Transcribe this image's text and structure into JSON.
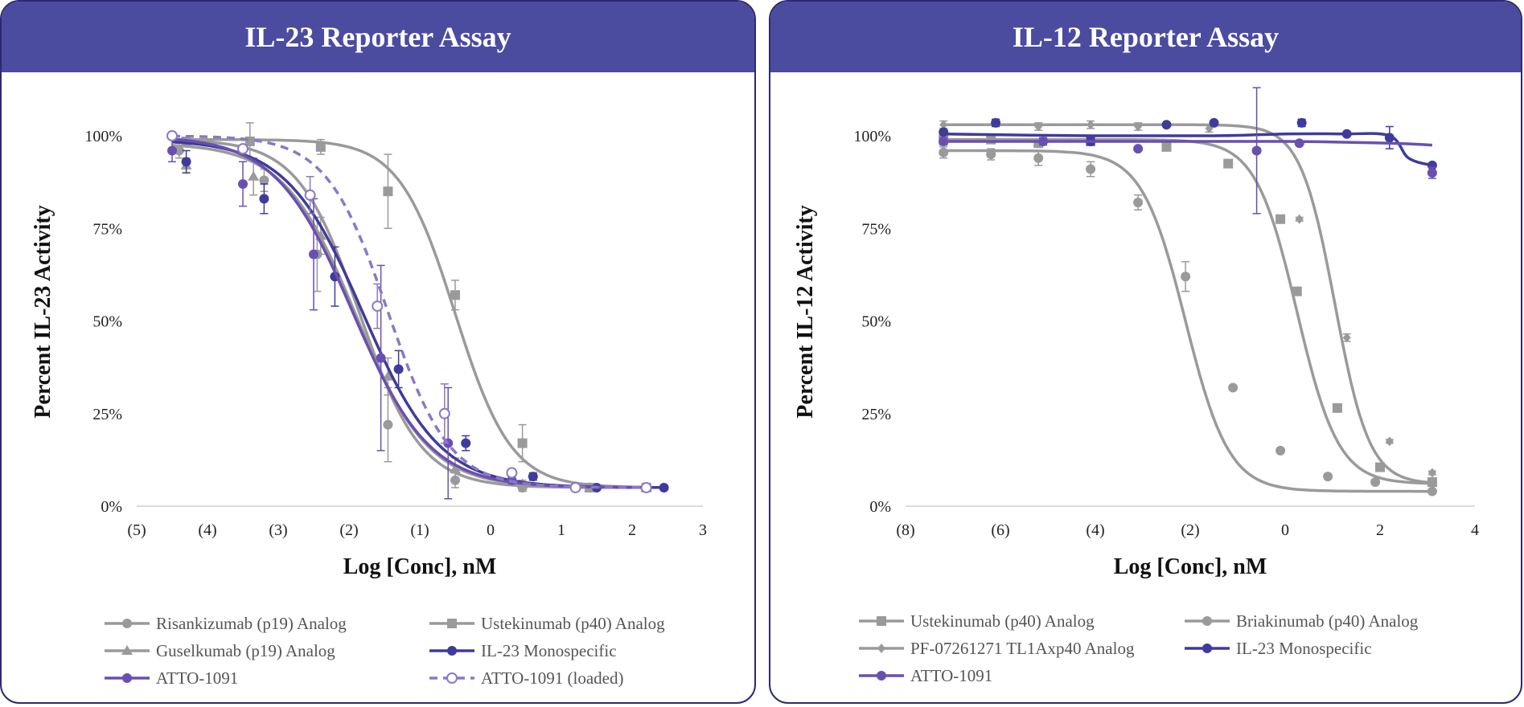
{
  "colors": {
    "header_bg": "#4b4ba0",
    "border": "#2e2a6e",
    "gray": "#9a9a9a",
    "purple": "#6a4fb2",
    "dark_purple": "#3f3b9c",
    "light_purple": "#8a78c8"
  },
  "chart_data": [
    {
      "type": "line",
      "title": "IL-23 Reporter Assay",
      "xlabel": "Log [Conc], nM",
      "ylabel": "Percent IL-23 Activity",
      "xlim": [
        -5,
        3
      ],
      "ylim": [
        0,
        1.05
      ],
      "x_ticks": [
        {
          "v": -5,
          "label": "(5)"
        },
        {
          "v": -4,
          "label": "(4)"
        },
        {
          "v": -3,
          "label": "(3)"
        },
        {
          "v": -2,
          "label": "(2)"
        },
        {
          "v": -1,
          "label": "(1)"
        },
        {
          "v": 0,
          "label": "0"
        },
        {
          "v": 1,
          "label": "1"
        },
        {
          "v": 2,
          "label": "2"
        },
        {
          "v": 3,
          "label": "3"
        }
      ],
      "y_ticks": [
        {
          "v": 0,
          "label": "0%"
        },
        {
          "v": 0.25,
          "label": "25%"
        },
        {
          "v": 0.5,
          "label": "50%"
        },
        {
          "v": 0.75,
          "label": "75%"
        },
        {
          "v": 1,
          "label": "100%"
        }
      ],
      "legend_position": "bottom",
      "series": [
        {
          "name": "Risankizumab (p19) Analog",
          "color": "#9a9a9a",
          "marker": "circle",
          "dash": false,
          "fit": {
            "top": 0.99,
            "bottom": 0.05,
            "ic50": -1.85,
            "hill": 1.0,
            "x_range": [
              -4.5,
              2.2
            ]
          },
          "points": [
            {
              "x": -4.4,
              "y": 0.96,
              "err": 0.02
            },
            {
              "x": -3.2,
              "y": 0.88,
              "err": 0.03
            },
            {
              "x": -2.45,
              "y": 0.68,
              "err": 0.1
            },
            {
              "x": -1.45,
              "y": 0.22,
              "err": 0.1
            },
            {
              "x": -0.5,
              "y": 0.07,
              "err": 0.02
            },
            {
              "x": 0.45,
              "y": 0.05,
              "err": 0.01
            },
            {
              "x": 1.4,
              "y": 0.05,
              "err": 0.005
            },
            {
              "x": 2.2,
              "y": 0.05,
              "err": 0.005
            }
          ]
        },
        {
          "name": "Ustekinumab (p40) Analog",
          "color": "#9a9a9a",
          "marker": "square",
          "dash": false,
          "fit": {
            "top": 0.99,
            "bottom": 0.05,
            "ic50": -0.5,
            "hill": 1.1,
            "x_range": [
              -4.5,
              2.2
            ]
          },
          "points": [
            {
              "x": -4.3,
              "y": 0.985,
              "err": 0.01
            },
            {
              "x": -3.4,
              "y": 0.985,
              "err": 0.05
            },
            {
              "x": -2.4,
              "y": 0.97,
              "err": 0.02
            },
            {
              "x": -1.45,
              "y": 0.85,
              "err": 0.1
            },
            {
              "x": -0.5,
              "y": 0.57,
              "err": 0.04
            },
            {
              "x": 0.45,
              "y": 0.17,
              "err": 0.05
            },
            {
              "x": 1.4,
              "y": 0.05,
              "err": 0.005
            },
            {
              "x": 2.2,
              "y": 0.05,
              "err": 0.005
            }
          ]
        },
        {
          "name": "Guselkumab (p19) Analog",
          "color": "#9a9a9a",
          "marker": "triangle",
          "dash": false,
          "fit": {
            "top": 0.98,
            "bottom": 0.05,
            "ic50": -1.9,
            "hill": 0.85,
            "x_range": [
              -4.5,
              2.2
            ]
          },
          "points": [
            {
              "x": -4.3,
              "y": 0.92,
              "err": 0.02
            },
            {
              "x": -3.35,
              "y": 0.89,
              "err": 0.05
            },
            {
              "x": -2.4,
              "y": 0.73,
              "err": 0.05
            },
            {
              "x": -1.45,
              "y": 0.35,
              "err": 0.05
            },
            {
              "x": -0.5,
              "y": 0.1,
              "err": 0.03
            },
            {
              "x": 0.45,
              "y": 0.06,
              "err": 0.01
            },
            {
              "x": 1.4,
              "y": 0.05,
              "err": 0.005
            },
            {
              "x": 2.2,
              "y": 0.05,
              "err": 0.005
            }
          ]
        },
        {
          "name": "IL-23 Monospecific",
          "color": "#3f3b9c",
          "marker": "circle",
          "dash": false,
          "fit": {
            "top": 0.99,
            "bottom": 0.05,
            "ic50": -1.8,
            "hill": 0.8,
            "x_range": [
              -4.5,
              2.45
            ]
          },
          "points": [
            {
              "x": -4.3,
              "y": 0.93,
              "err": 0.03
            },
            {
              "x": -3.2,
              "y": 0.83,
              "err": 0.04
            },
            {
              "x": -2.2,
              "y": 0.62,
              "err": 0.08
            },
            {
              "x": -1.3,
              "y": 0.37,
              "err": 0.05
            },
            {
              "x": -0.35,
              "y": 0.17,
              "err": 0.02
            },
            {
              "x": 0.6,
              "y": 0.08,
              "err": 0.01
            },
            {
              "x": 1.5,
              "y": 0.05,
              "err": 0.005
            },
            {
              "x": 2.45,
              "y": 0.05,
              "err": 0.005
            }
          ]
        },
        {
          "name": "ATTO-1091",
          "color": "#6a4fb2",
          "marker": "circle",
          "dash": false,
          "fit": {
            "top": 1.0,
            "bottom": 0.05,
            "ic50": -1.95,
            "hill": 0.8,
            "x_range": [
              -4.5,
              2.2
            ]
          },
          "points": [
            {
              "x": -4.5,
              "y": 0.96,
              "err": 0.03
            },
            {
              "x": -3.5,
              "y": 0.87,
              "err": 0.06
            },
            {
              "x": -2.5,
              "y": 0.68,
              "err": 0.15
            },
            {
              "x": -1.55,
              "y": 0.4,
              "err": 0.25
            },
            {
              "x": -0.6,
              "y": 0.17,
              "err": 0.15
            },
            {
              "x": 0.3,
              "y": 0.07,
              "err": 0.01
            },
            {
              "x": 1.2,
              "y": 0.05,
              "err": 0.005
            },
            {
              "x": 2.2,
              "y": 0.05,
              "err": 0.005
            }
          ]
        },
        {
          "name": "ATTO-1091 (loaded)",
          "color": "#8a78c8",
          "marker": "open-circle",
          "dash": true,
          "fit": {
            "top": 1.0,
            "bottom": 0.05,
            "ic50": -1.45,
            "hill": 1.0,
            "x_range": [
              -4.5,
              2.2
            ]
          },
          "points": [
            {
              "x": -4.5,
              "y": 1.0,
              "err": 0.005
            },
            {
              "x": -3.5,
              "y": 0.965,
              "err": 0.005
            },
            {
              "x": -2.55,
              "y": 0.84,
              "err": 0.05
            },
            {
              "x": -1.6,
              "y": 0.54,
              "err": 0.06
            },
            {
              "x": -0.65,
              "y": 0.25,
              "err": 0.08
            },
            {
              "x": 0.3,
              "y": 0.09,
              "err": 0.01
            },
            {
              "x": 1.2,
              "y": 0.05,
              "err": 0.005
            },
            {
              "x": 2.2,
              "y": 0.05,
              "err": 0.005
            }
          ]
        }
      ]
    },
    {
      "type": "line",
      "title": "IL-12 Reporter Assay",
      "xlabel": "Log [Conc], nM",
      "ylabel": "Percent IL-12 Activity",
      "xlim": [
        -8,
        4
      ],
      "ylim": [
        0,
        1.05
      ],
      "x_ticks": [
        {
          "v": -8,
          "label": "(8)"
        },
        {
          "v": -6,
          "label": "(6)"
        },
        {
          "v": -4,
          "label": "(4)"
        },
        {
          "v": -2,
          "label": "(2)"
        },
        {
          "v": 0,
          "label": "0"
        },
        {
          "v": 2,
          "label": "2"
        },
        {
          "v": 4,
          "label": "4"
        }
      ],
      "y_ticks": [
        {
          "v": 0,
          "label": "0%"
        },
        {
          "v": 0.25,
          "label": "25%"
        },
        {
          "v": 0.5,
          "label": "50%"
        },
        {
          "v": 0.75,
          "label": "75%"
        },
        {
          "v": 1,
          "label": "100%"
        }
      ],
      "legend_position": "bottom",
      "series": [
        {
          "name": "Ustekinumab (p40) Analog",
          "color": "#9a9a9a",
          "marker": "square",
          "dash": false,
          "fit": {
            "top": 0.99,
            "bottom": 0.06,
            "ic50": 0.25,
            "hill": 1.0,
            "x_range": [
              -7.2,
              3.1
            ]
          },
          "points": [
            {
              "x": -7.2,
              "y": 0.99,
              "err": 0.01
            },
            {
              "x": -6.2,
              "y": 0.99,
              "err": 0.01
            },
            {
              "x": -5.2,
              "y": 0.98,
              "err": 0.01
            },
            {
              "x": -4.1,
              "y": 0.985,
              "err": 0.01
            },
            {
              "x": -2.5,
              "y": 0.97,
              "err": 0.01
            },
            {
              "x": -1.2,
              "y": 0.925,
              "err": 0.01
            },
            {
              "x": -0.1,
              "y": 0.775,
              "err": 0.01
            },
            {
              "x": 0.25,
              "y": 0.58,
              "err": 0.01
            },
            {
              "x": 1.1,
              "y": 0.265,
              "err": 0.01
            },
            {
              "x": 2.0,
              "y": 0.105,
              "err": 0.005
            },
            {
              "x": 3.1,
              "y": 0.065,
              "err": 0.005
            }
          ]
        },
        {
          "name": "Briakinumab (p40) Analog",
          "color": "#9a9a9a",
          "marker": "circle",
          "dash": false,
          "fit": {
            "top": 0.96,
            "bottom": 0.04,
            "ic50": -2.1,
            "hill": 0.95,
            "x_range": [
              -7.2,
              3.1
            ]
          },
          "points": [
            {
              "x": -7.2,
              "y": 0.955,
              "err": 0.015
            },
            {
              "x": -6.2,
              "y": 0.95,
              "err": 0.015
            },
            {
              "x": -5.2,
              "y": 0.94,
              "err": 0.02
            },
            {
              "x": -4.1,
              "y": 0.91,
              "err": 0.02
            },
            {
              "x": -3.1,
              "y": 0.82,
              "err": 0.02
            },
            {
              "x": -2.1,
              "y": 0.62,
              "err": 0.04
            },
            {
              "x": -1.1,
              "y": 0.32,
              "err": 0.005
            },
            {
              "x": -0.1,
              "y": 0.15,
              "err": 0.005
            },
            {
              "x": 0.9,
              "y": 0.08,
              "err": 0.005
            },
            {
              "x": 1.9,
              "y": 0.065,
              "err": 0.005
            },
            {
              "x": 3.1,
              "y": 0.04,
              "err": 0.005
            }
          ]
        },
        {
          "name": "PF-07261271 TL1Axp40 Analog",
          "color": "#9a9a9a",
          "marker": "diamond",
          "dash": false,
          "fit": {
            "top": 1.03,
            "bottom": 0.06,
            "ic50": 1.05,
            "hill": 1.2,
            "x_range": [
              -7.2,
              3.1
            ]
          },
          "points": [
            {
              "x": -7.2,
              "y": 1.03,
              "err": 0.01
            },
            {
              "x": -5.2,
              "y": 1.025,
              "err": 0.01
            },
            {
              "x": -4.1,
              "y": 1.03,
              "err": 0.01
            },
            {
              "x": -3.1,
              "y": 1.025,
              "err": 0.01
            },
            {
              "x": -1.6,
              "y": 1.02,
              "err": 0.01
            },
            {
              "x": 0.3,
              "y": 0.775,
              "err": 0.005
            },
            {
              "x": 1.3,
              "y": 0.455,
              "err": 0.01
            },
            {
              "x": 2.2,
              "y": 0.175,
              "err": 0.005
            },
            {
              "x": 3.1,
              "y": 0.09,
              "err": 0.005
            }
          ]
        },
        {
          "name": "IL-23 Monospecific",
          "color": "#3f3b9c",
          "marker": "circle",
          "dash": false,
          "curve": [
            {
              "x": -7.2,
              "y": 1.005
            },
            {
              "x": -4.1,
              "y": 1.0
            },
            {
              "x": -1.5,
              "y": 1.0
            },
            {
              "x": 0,
              "y": 1.005
            },
            {
              "x": 1.2,
              "y": 1.005
            },
            {
              "x": 2.2,
              "y": 1.0
            },
            {
              "x": 2.6,
              "y": 0.94
            },
            {
              "x": 3.1,
              "y": 0.92
            }
          ],
          "points": [
            {
              "x": -7.2,
              "y": 1.01,
              "err": 0.005
            },
            {
              "x": -6.1,
              "y": 1.035,
              "err": 0.01
            },
            {
              "x": -4.1,
              "y": 0.985,
              "err": 0.01
            },
            {
              "x": -2.5,
              "y": 1.03,
              "err": 0.005
            },
            {
              "x": -1.5,
              "y": 1.035,
              "err": 0.005
            },
            {
              "x": 0.35,
              "y": 1.035,
              "err": 0.01
            },
            {
              "x": 1.3,
              "y": 1.005,
              "err": 0.005
            },
            {
              "x": 2.2,
              "y": 0.995,
              "err": 0.03
            },
            {
              "x": 3.1,
              "y": 0.92,
              "err": 0.005
            }
          ]
        },
        {
          "name": "ATTO-1091",
          "color": "#6a4fb2",
          "marker": "circle",
          "dash": false,
          "curve": [
            {
              "x": -7.2,
              "y": 0.985
            },
            {
              "x": -3.0,
              "y": 0.985
            },
            {
              "x": 0,
              "y": 0.985
            },
            {
              "x": 2.2,
              "y": 0.98
            },
            {
              "x": 3.1,
              "y": 0.975
            }
          ],
          "points": [
            {
              "x": -7.2,
              "y": 0.985,
              "err": 0.01
            },
            {
              "x": -5.1,
              "y": 0.985,
              "err": 0.01
            },
            {
              "x": -3.1,
              "y": 0.965,
              "err": 0.005
            },
            {
              "x": -0.6,
              "y": 0.96,
              "err": 0.17
            },
            {
              "x": 0.3,
              "y": 0.98,
              "err": 0.005
            },
            {
              "x": 3.1,
              "y": 0.9,
              "err": 0.015
            }
          ]
        }
      ]
    }
  ]
}
